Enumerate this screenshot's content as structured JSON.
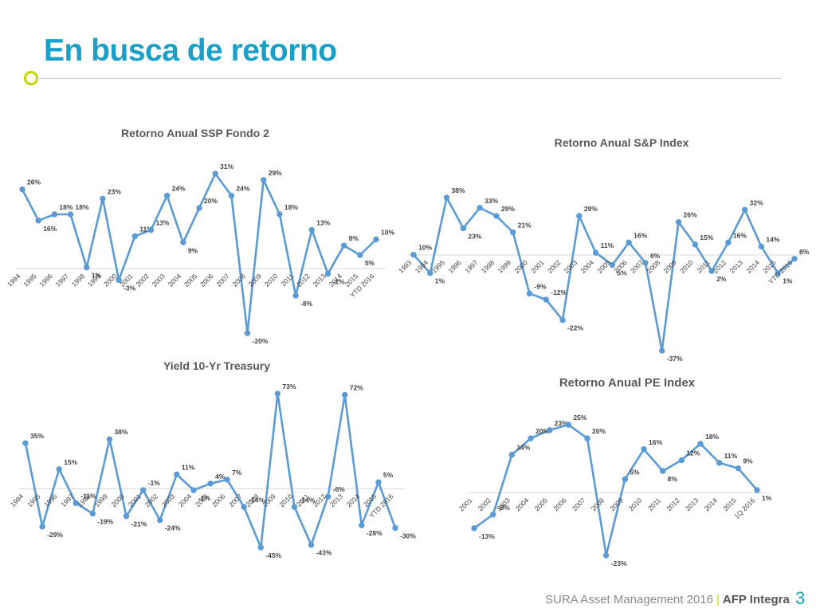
{
  "slide": {
    "title": "En busca de retorno",
    "footer_company": "SURA Asset Management 2016",
    "footer_sep": "|",
    "footer_brand": "AFP Integra",
    "page_number": "3"
  },
  "colors": {
    "title": "#1aa0c8",
    "accent": "#c8d400",
    "series": "#5b9bd5"
  },
  "chart_data": [
    {
      "type": "line",
      "title": "Retorno Anual SSP Fondo 2",
      "categories": [
        "1994",
        "1995",
        "1996",
        "1997",
        "1998",
        "1999",
        "2000",
        "2001",
        "2002",
        "2003",
        "2004",
        "2005",
        "2006",
        "2007",
        "2008",
        "2009",
        "2010",
        "2011",
        "2012",
        "2013",
        "2014",
        "2015",
        "YTD 2016"
      ],
      "values": [
        26,
        16,
        18,
        18,
        1,
        23,
        -3,
        11,
        13,
        24,
        9,
        20,
        31,
        24,
        -20,
        29,
        18,
        -8,
        13,
        -1,
        8,
        5,
        10
      ],
      "labels": [
        "26%",
        "16%",
        "18%",
        "18%",
        "1%",
        "23%",
        "-3%",
        "11%",
        "13%",
        "24%",
        "9%",
        "20%",
        "31%",
        "24%",
        "-20%",
        "29%",
        "18%",
        "-8%",
        "13%",
        "-1%",
        "8%",
        "5%",
        "10%"
      ],
      "ylim": [
        -20,
        31
      ]
    },
    {
      "type": "line",
      "title": "Retorno Anual S&P Index",
      "categories": [
        "1993",
        "1994",
        "1995",
        "1996",
        "1997",
        "1998",
        "1999",
        "2000",
        "2001",
        "2002",
        "2003",
        "2004",
        "2005",
        "2006",
        "2007",
        "2008",
        "2009",
        "2010",
        "2011",
        "2012",
        "2013",
        "2014",
        "2015",
        "YTD 2016"
      ],
      "values": [
        10,
        1,
        38,
        23,
        33,
        29,
        21,
        -9,
        -12,
        -22,
        29,
        11,
        5,
        16,
        6,
        -37,
        26,
        15,
        2,
        16,
        32,
        14,
        1,
        8
      ],
      "labels": [
        "10%",
        "1%",
        "38%",
        "23%",
        "33%",
        "29%",
        "21%",
        "-9%",
        "-12%",
        "-22%",
        "29%",
        "11%",
        "5%",
        "16%",
        "6%",
        "-37%",
        "26%",
        "15%",
        "2%",
        "16%",
        "32%",
        "14%",
        "1%",
        "8%"
      ],
      "ylim": [
        -37,
        38
      ]
    },
    {
      "type": "line",
      "title": "Yield 10-Yr Treasury",
      "categories": [
        "1994",
        "1995",
        "1996",
        "1997",
        "1998",
        "1999",
        "2000",
        "2001",
        "2002",
        "2003",
        "2004",
        "2005",
        "2006",
        "2007",
        "2008",
        "2009",
        "2010",
        "2011",
        "2012",
        "2013",
        "2014",
        "2015",
        "YTD 2016"
      ],
      "values": [
        35,
        -29,
        15,
        -11,
        -19,
        38,
        -21,
        -1,
        -24,
        11,
        -1,
        4,
        7,
        -14,
        -45,
        73,
        -14,
        -43,
        -6,
        72,
        -28,
        5,
        -30
      ],
      "labels": [
        "35%",
        "-29%",
        "15%",
        "-11%",
        "-19%",
        "38%",
        "-21%",
        "-1%",
        "-24%",
        "11%",
        "-1%",
        "4%",
        "7%",
        "-14%",
        "-45%",
        "73%",
        "-14%",
        "-43%",
        "-6%",
        "72%",
        "-28%",
        "5%",
        "-30%"
      ],
      "ylim": [
        -45,
        73
      ]
    },
    {
      "type": "line",
      "title": "Retorno Anual PE Index",
      "categories": [
        "2001",
        "2002",
        "2003",
        "2004",
        "2005",
        "2006",
        "2007",
        "2008",
        "2009",
        "2010",
        "2011",
        "2012",
        "2013",
        "2014",
        "2015",
        "1Q 2016"
      ],
      "values": [
        -13,
        -8,
        14,
        20,
        23,
        25,
        20,
        -23,
        5,
        16,
        8,
        12,
        18,
        11,
        9,
        1
      ],
      "labels": [
        "-13%",
        "-8%",
        "14%",
        "20%",
        "23%",
        "25%",
        "20%",
        "-23%",
        "5%",
        "16%",
        "8%",
        "12%",
        "18%",
        "11%",
        "9%",
        "1%"
      ],
      "ylim": [
        -23,
        25
      ]
    }
  ]
}
